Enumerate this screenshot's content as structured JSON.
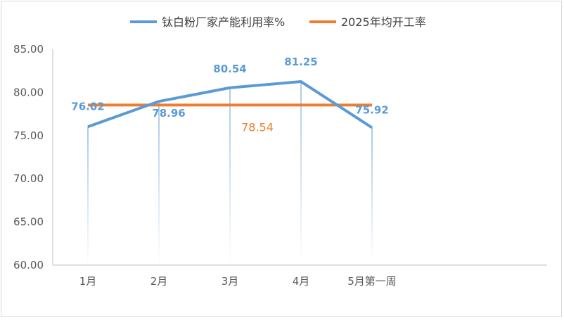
{
  "chart_data": {
    "type": "line",
    "categories": [
      "1月",
      "2月",
      "3月",
      "4月",
      "5月第一周"
    ],
    "series": [
      {
        "name": "钛白粉厂家产能利用率%",
        "values": [
          76.02,
          78.96,
          80.54,
          81.25,
          75.92
        ],
        "labels": [
          "76.02",
          "78.96",
          "80.54",
          "81.25",
          "75.92"
        ],
        "color": "#5b9bd5"
      },
      {
        "name": "2025年均开工率",
        "values": [
          78.54,
          78.54,
          78.54,
          78.54,
          78.54
        ],
        "label": "78.54",
        "color": "#ed7d31"
      }
    ],
    "yticks": [
      "60.00",
      "65.00",
      "70.00",
      "75.00",
      "80.00",
      "85.00"
    ],
    "ylim": [
      60,
      85
    ],
    "grid": false,
    "legend_position": "top"
  }
}
